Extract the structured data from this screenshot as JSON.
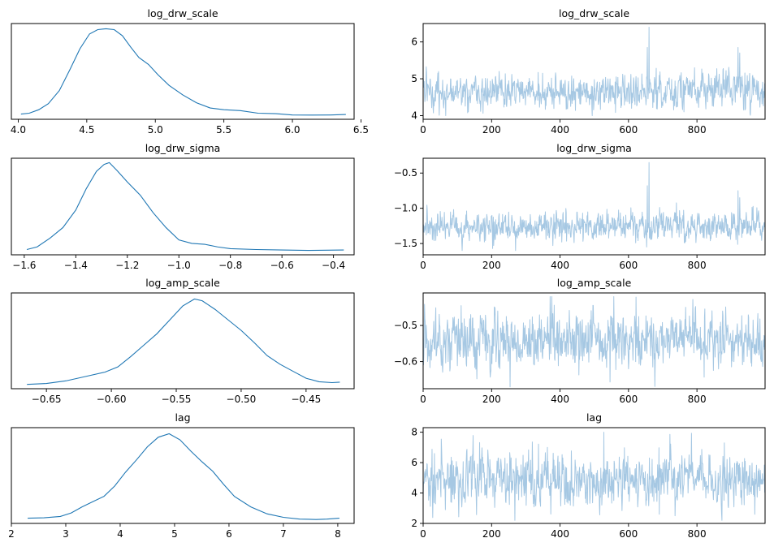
{
  "figure": {
    "background": "#ffffff",
    "kde_color": "#1f77b4",
    "trace_color": "#a6c8e3"
  },
  "chart_data": [
    {
      "type": "line",
      "kind": "kde",
      "variable": "log_drw_scale",
      "title": "log_drw_scale",
      "xlim": [
        3.95,
        6.45
      ],
      "xticks": [
        "4.0",
        "4.5",
        "5.0",
        "5.5",
        "6.0",
        "6.5"
      ],
      "yticks": [],
      "x": [
        4.02,
        4.08,
        4.15,
        4.22,
        4.3,
        4.38,
        4.45,
        4.52,
        4.58,
        4.64,
        4.7,
        4.76,
        4.82,
        4.88,
        4.95,
        5.02,
        5.1,
        5.2,
        5.3,
        5.4,
        5.5,
        5.62,
        5.75,
        5.88,
        6.0,
        6.15,
        6.28,
        6.39
      ],
      "y": [
        0.03,
        0.04,
        0.08,
        0.15,
        0.3,
        0.55,
        0.78,
        0.95,
        1.0,
        1.01,
        1.0,
        0.93,
        0.8,
        0.68,
        0.6,
        0.48,
        0.36,
        0.25,
        0.16,
        0.1,
        0.08,
        0.07,
        0.04,
        0.035,
        0.02,
        0.018,
        0.02,
        0.025
      ],
      "ylim": [
        -0.03,
        1.07
      ]
    },
    {
      "type": "line",
      "kind": "trace",
      "variable": "log_drw_scale",
      "title": "log_drw_scale",
      "xlim": [
        0,
        999
      ],
      "xticks": [
        "0",
        "200",
        "400",
        "600",
        "800"
      ],
      "ylim": [
        3.9,
        6.5
      ],
      "yticks": [
        "4",
        "5",
        "6"
      ],
      "n_samples": 1000,
      "mean": 4.67,
      "sd": 0.22,
      "min": 4.0,
      "max": 6.4,
      "spikes": [
        [
          655,
          5.85
        ],
        [
          660,
          6.4
        ],
        [
          920,
          5.85
        ],
        [
          925,
          5.7
        ]
      ]
    },
    {
      "type": "line",
      "kind": "kde",
      "variable": "log_drw_sigma",
      "title": "log_drw_sigma",
      "xlim": [
        -1.65,
        -0.32
      ],
      "xticks": [
        "−1.6",
        "−1.4",
        "−1.2",
        "−1.0",
        "−0.8",
        "−0.6",
        "−0.4"
      ],
      "yticks": [],
      "x": [
        -1.59,
        -1.55,
        -1.5,
        -1.45,
        -1.4,
        -1.36,
        -1.32,
        -1.29,
        -1.27,
        -1.24,
        -1.2,
        -1.15,
        -1.1,
        -1.05,
        -1.0,
        -0.95,
        -0.9,
        -0.85,
        -0.8,
        -0.7,
        -0.6,
        -0.5,
        -0.36
      ],
      "y": [
        0.03,
        0.06,
        0.16,
        0.28,
        0.48,
        0.72,
        0.92,
        1.0,
        1.02,
        0.93,
        0.8,
        0.65,
        0.45,
        0.28,
        0.14,
        0.1,
        0.09,
        0.06,
        0.04,
        0.03,
        0.025,
        0.02,
        0.025
      ],
      "ylim": [
        -0.03,
        1.07
      ]
    },
    {
      "type": "line",
      "kind": "trace",
      "variable": "log_drw_sigma",
      "title": "log_drw_sigma",
      "xlim": [
        0,
        999
      ],
      "xticks": [
        "0",
        "200",
        "400",
        "600",
        "800"
      ],
      "ylim": [
        -1.66,
        -0.29
      ],
      "yticks": [
        "−0.5",
        "−1.0",
        "−1.5"
      ],
      "n_samples": 1000,
      "mean": -1.27,
      "sd": 0.09,
      "min": -1.6,
      "max": -0.35,
      "spikes": [
        [
          655,
          -0.68
        ],
        [
          660,
          -0.35
        ],
        [
          920,
          -0.75
        ],
        [
          925,
          -0.85
        ]
      ]
    },
    {
      "type": "line",
      "kind": "kde",
      "variable": "log_amp_scale",
      "title": "log_amp_scale",
      "xlim": [
        -0.677,
        -0.413
      ],
      "xticks": [
        "−0.65",
        "−0.60",
        "−0.55",
        "−0.50",
        "−0.45"
      ],
      "yticks": [],
      "x": [
        -0.665,
        -0.65,
        -0.635,
        -0.62,
        -0.605,
        -0.595,
        -0.585,
        -0.575,
        -0.565,
        -0.555,
        -0.545,
        -0.536,
        -0.53,
        -0.52,
        -0.51,
        -0.5,
        -0.49,
        -0.48,
        -0.47,
        -0.46,
        -0.45,
        -0.44,
        -0.43,
        -0.424
      ],
      "y": [
        0.02,
        0.03,
        0.06,
        0.11,
        0.16,
        0.22,
        0.34,
        0.47,
        0.6,
        0.76,
        0.92,
        1.0,
        0.98,
        0.88,
        0.76,
        0.64,
        0.5,
        0.35,
        0.25,
        0.17,
        0.09,
        0.05,
        0.04,
        0.045
      ],
      "ylim": [
        -0.03,
        1.07
      ]
    },
    {
      "type": "line",
      "kind": "trace",
      "variable": "log_amp_scale",
      "title": "log_amp_scale",
      "xlim": [
        0,
        999
      ],
      "xticks": [
        "0",
        "200",
        "400",
        "600",
        "800"
      ],
      "ylim": [
        -0.675,
        -0.41
      ],
      "yticks": [
        "−0.5",
        "−0.6"
      ],
      "n_samples": 1000,
      "mean": -0.54,
      "sd": 0.035,
      "min": -0.67,
      "max": -0.42,
      "spikes": []
    },
    {
      "type": "line",
      "kind": "kde",
      "variable": "lag",
      "title": "lag",
      "xlim": [
        2.0,
        8.3
      ],
      "xticks": [
        "2",
        "3",
        "4",
        "5",
        "6",
        "7",
        "8"
      ],
      "yticks": [],
      "x": [
        2.3,
        2.6,
        2.9,
        3.1,
        3.3,
        3.5,
        3.7,
        3.9,
        4.1,
        4.3,
        4.5,
        4.7,
        4.9,
        5.1,
        5.3,
        5.5,
        5.7,
        5.9,
        6.1,
        6.4,
        6.7,
        7.0,
        7.3,
        7.6,
        7.8,
        8.03
      ],
      "y": [
        0.03,
        0.035,
        0.05,
        0.09,
        0.16,
        0.22,
        0.28,
        0.4,
        0.56,
        0.7,
        0.85,
        0.96,
        1.0,
        0.93,
        0.8,
        0.68,
        0.57,
        0.42,
        0.28,
        0.16,
        0.08,
        0.04,
        0.02,
        0.015,
        0.02,
        0.03
      ],
      "ylim": [
        -0.03,
        1.07
      ]
    },
    {
      "type": "line",
      "kind": "trace",
      "variable": "lag",
      "title": "lag",
      "xlim": [
        0,
        999
      ],
      "xticks": [
        "0",
        "200",
        "400",
        "600",
        "800"
      ],
      "ylim": [
        2.0,
        8.3
      ],
      "yticks": [
        "2",
        "4",
        "6",
        "8"
      ],
      "n_samples": 1000,
      "mean": 4.9,
      "sd": 0.8,
      "min": 2.2,
      "max": 8.0,
      "spikes": [
        [
          268,
          2.2
        ],
        [
          528,
          8.0
        ],
        [
          690,
          2.6
        ],
        [
          880,
          7.3
        ]
      ]
    }
  ]
}
